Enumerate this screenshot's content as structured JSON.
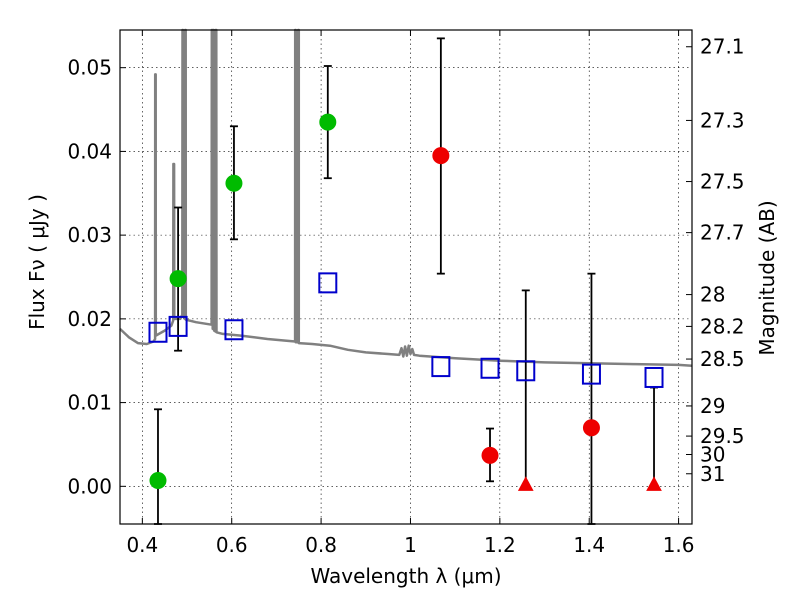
{
  "chart_data": {
    "type": "scatter",
    "title": "",
    "xlabel": "Wavelength  λ (μm)",
    "ylabel": "Flux  Fν  ( μJy )",
    "ylabel_right": "Magnitude (AB)",
    "xlim": [
      0.35,
      1.63
    ],
    "ylim": [
      -0.0045,
      0.0545
    ],
    "grid": true,
    "legend": "none",
    "x_ticks": [
      {
        "value": 0.4,
        "label": "0.4"
      },
      {
        "value": 0.6,
        "label": "0.6"
      },
      {
        "value": 0.8,
        "label": "0.8"
      },
      {
        "value": 1.0,
        "label": "1"
      },
      {
        "value": 1.2,
        "label": "1.2"
      },
      {
        "value": 1.4,
        "label": "1.4"
      },
      {
        "value": 1.6,
        "label": "1.6"
      }
    ],
    "y_ticks": [
      {
        "value": 0.0,
        "label": "0.00"
      },
      {
        "value": 0.01,
        "label": "0.01"
      },
      {
        "value": 0.02,
        "label": "0.02"
      },
      {
        "value": 0.03,
        "label": "0.03"
      },
      {
        "value": 0.04,
        "label": "0.04"
      },
      {
        "value": 0.05,
        "label": "0.05"
      }
    ],
    "right_ticks": [
      {
        "flux": 0.0525,
        "label": "27.1"
      },
      {
        "flux": 0.0437,
        "label": "27.3"
      },
      {
        "flux": 0.0364,
        "label": "27.5"
      },
      {
        "flux": 0.0303,
        "label": "27.7"
      },
      {
        "flux": 0.0229,
        "label": "28"
      },
      {
        "flux": 0.0191,
        "label": "28.2"
      },
      {
        "flux": 0.0152,
        "label": "28.5"
      },
      {
        "flux": 0.0096,
        "label": "29"
      },
      {
        "flux": 0.006,
        "label": "29.5"
      },
      {
        "flux": 0.0038,
        "label": "30"
      },
      {
        "flux": 0.0015,
        "label": "31"
      }
    ],
    "series": [
      {
        "name": "green detections",
        "marker": "circle",
        "color": "#00bb00",
        "points": [
          {
            "x": 0.435,
            "y": 0.0007,
            "ylo": -0.0045,
            "yhi": 0.0092
          },
          {
            "x": 0.48,
            "y": 0.0248,
            "ylo": 0.0162,
            "yhi": 0.0333
          },
          {
            "x": 0.605,
            "y": 0.0362,
            "ylo": 0.0295,
            "yhi": 0.043
          },
          {
            "x": 0.815,
            "y": 0.0435,
            "ylo": 0.0368,
            "yhi": 0.0502
          }
        ]
      },
      {
        "name": "red measurements",
        "marker": "circle",
        "color": "#ee0000",
        "points": [
          {
            "x": 1.068,
            "y": 0.0395,
            "ylo": 0.0254,
            "yhi": 0.0535
          },
          {
            "x": 1.178,
            "y": 0.0037,
            "ylo": 0.0006,
            "yhi": 0.0069
          },
          {
            "x": 1.405,
            "y": 0.007,
            "ylo": -0.0045,
            "yhi": 0.0254
          }
        ]
      },
      {
        "name": "red upper limits",
        "marker": "triangle",
        "color": "#ee0000",
        "points": [
          {
            "x": 1.258,
            "y": 0.0,
            "ylo": 0.0,
            "yhi": 0.0234
          },
          {
            "x": 1.545,
            "y": 0.0,
            "ylo": 0.0,
            "yhi": 0.0118
          }
        ]
      },
      {
        "name": "model photometry",
        "marker": "square-open",
        "color": "#0000cc",
        "points": [
          {
            "x": 0.435,
            "y": 0.0184
          },
          {
            "x": 0.48,
            "y": 0.0191
          },
          {
            "x": 0.605,
            "y": 0.0187
          },
          {
            "x": 0.815,
            "y": 0.0243
          },
          {
            "x": 1.068,
            "y": 0.0143
          },
          {
            "x": 1.178,
            "y": 0.0141
          },
          {
            "x": 1.258,
            "y": 0.0138
          },
          {
            "x": 1.405,
            "y": 0.0134
          },
          {
            "x": 1.545,
            "y": 0.013
          }
        ]
      }
    ],
    "model_spectrum": {
      "name": "model spectrum",
      "color": "#808080",
      "points": [
        [
          0.35,
          0.0188
        ],
        [
          0.37,
          0.0178
        ],
        [
          0.39,
          0.0171
        ],
        [
          0.41,
          0.017
        ],
        [
          0.425,
          0.0173
        ],
        [
          0.4285,
          0.0176
        ],
        [
          0.4288,
          0.0492
        ],
        [
          0.4298,
          0.0492
        ],
        [
          0.43,
          0.018
        ],
        [
          0.45,
          0.0186
        ],
        [
          0.465,
          0.0192
        ],
        [
          0.469,
          0.0198
        ],
        [
          0.4695,
          0.0385
        ],
        [
          0.471,
          0.0385
        ],
        [
          0.4715,
          0.02
        ],
        [
          0.485,
          0.02
        ],
        [
          0.4895,
          0.0205
        ],
        [
          0.4898,
          0.0545
        ],
        [
          0.4908,
          0.0545
        ],
        [
          0.491,
          0.0203
        ],
        [
          0.4955,
          0.02
        ],
        [
          0.4958,
          0.0545
        ],
        [
          0.497,
          0.0545
        ],
        [
          0.4972,
          0.0199
        ],
        [
          0.52,
          0.0196
        ],
        [
          0.555,
          0.0193
        ],
        [
          0.5555,
          0.0545
        ],
        [
          0.5565,
          0.0545
        ],
        [
          0.5575,
          0.0188
        ],
        [
          0.5585,
          0.0545
        ],
        [
          0.5595,
          0.0545
        ],
        [
          0.5605,
          0.0186
        ],
        [
          0.5635,
          0.0185
        ],
        [
          0.564,
          0.0545
        ],
        [
          0.5655,
          0.0545
        ],
        [
          0.566,
          0.0184
        ],
        [
          0.58,
          0.0182
        ],
        [
          0.62,
          0.018
        ],
        [
          0.68,
          0.0176
        ],
        [
          0.72,
          0.0174
        ],
        [
          0.7418,
          0.0173
        ],
        [
          0.742,
          0.0545
        ],
        [
          0.7432,
          0.0545
        ],
        [
          0.7434,
          0.0172
        ],
        [
          0.7485,
          0.0172
        ],
        [
          0.7487,
          0.0545
        ],
        [
          0.75,
          0.0545
        ],
        [
          0.7502,
          0.0171
        ],
        [
          0.78,
          0.017
        ],
        [
          0.82,
          0.0168
        ],
        [
          0.86,
          0.0163
        ],
        [
          0.9,
          0.016
        ],
        [
          0.95,
          0.0158
        ],
        [
          0.975,
          0.0157
        ],
        [
          0.98,
          0.0165
        ],
        [
          0.984,
          0.0155
        ],
        [
          0.988,
          0.0167
        ],
        [
          0.992,
          0.0156
        ],
        [
          0.996,
          0.0168
        ],
        [
          1.0,
          0.0158
        ],
        [
          1.004,
          0.0164
        ],
        [
          1.008,
          0.0157
        ],
        [
          1.02,
          0.0156
        ],
        [
          1.1,
          0.0153
        ],
        [
          1.2,
          0.015
        ],
        [
          1.3,
          0.0148
        ],
        [
          1.4,
          0.0147
        ],
        [
          1.5,
          0.0146
        ],
        [
          1.6,
          0.0145
        ],
        [
          1.63,
          0.0144
        ]
      ]
    }
  }
}
